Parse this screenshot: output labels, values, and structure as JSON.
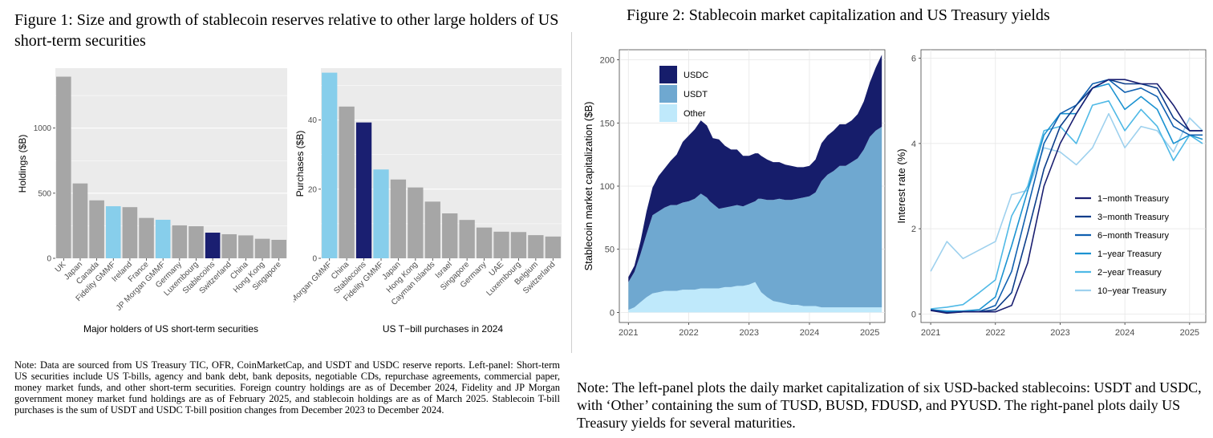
{
  "figure1": {
    "title": "Figure 1: Size and growth of stablecoin reserves relative to other large holders of US short-term securities",
    "note": "Note: Data are sourced from US Treasury TIC, OFR, CoinMarketCap, and USDT and USDC reserve reports. Left-panel: Short-term US securities include US T-bills, agency and bank debt, bank deposits, negotiable CDs, repurchase agreements, commercial paper, money market funds, and other short-term securities. Foreign country holdings are as of December 2024, Fidelity and JP Morgan government money market fund holdings are as of February 2025, and stablecoin holdings are as of March 2025. Stablecoin T-bill purchases is the sum of USDT and USDC T-bill position changes from December 2023 to December 2024."
  },
  "figure2": {
    "title": "Figure 2: Stablecoin market capitalization and US Treasury yields",
    "note": "Note: The left-panel plots the daily market capitalization of six USD-backed stablecoins: USDT and USDC, with ‘Other’ containing the sum of TUSD, BUSD, FDUSD, and PYUSD. The right-panel plots daily US Treasury yields for several maturities."
  },
  "colors": {
    "gray": "#a6a6a6",
    "light_blue": "#87ceeb",
    "navy": "#1a1f71",
    "panel_bg": "#ebebeb",
    "usdc": "#161d6b",
    "usdt": "#6fa8d0",
    "other": "#bfe9fb"
  },
  "chart_data": [
    {
      "type": "bar",
      "xlabel": "Major holders of US short-term securities",
      "ylabel": "Holdings ($B)",
      "ylim": [
        0,
        1460
      ],
      "yticks": [
        0,
        500,
        1000
      ],
      "grid": true,
      "categories": [
        "UK",
        "Japan",
        "Canada",
        "Fidelity GMMF",
        "Ireland",
        "France",
        "JP Morgan GMMF",
        "Germany",
        "Luxembourg",
        "Stablecoins",
        "Switzerland",
        "China",
        "Hong Kong",
        "Singapore"
      ],
      "values": [
        1395,
        575,
        445,
        400,
        393,
        310,
        296,
        253,
        247,
        197,
        185,
        176,
        150,
        142
      ],
      "bar_colors": [
        "gray",
        "gray",
        "gray",
        "light_blue",
        "gray",
        "gray",
        "light_blue",
        "gray",
        "gray",
        "navy",
        "gray",
        "gray",
        "gray",
        "gray"
      ]
    },
    {
      "type": "bar",
      "xlabel": "US T−bill purchases in 2024",
      "ylabel": "Purchases ($B)",
      "ylim": [
        0,
        55
      ],
      "yticks": [
        0,
        20,
        40
      ],
      "grid": true,
      "categories": [
        "JP Morgan GMMF",
        "China",
        "Stablecoins",
        "Fidelity GMMF",
        "Japan",
        "Hong Kong",
        "Cayman Islands",
        "Israel",
        "Singapore",
        "Germany",
        "UAE",
        "Luxembourg",
        "Belgium",
        "Switzerland"
      ],
      "values": [
        53.7,
        43.9,
        39.3,
        25.7,
        22.8,
        20.5,
        16.4,
        13.0,
        11.1,
        8.9,
        7.7,
        7.6,
        6.7,
        6.3
      ],
      "bar_colors": [
        "light_blue",
        "gray",
        "navy",
        "light_blue",
        "gray",
        "gray",
        "gray",
        "gray",
        "gray",
        "gray",
        "gray",
        "gray",
        "gray",
        "gray"
      ]
    },
    {
      "type": "area",
      "ylabel": "Stablecoin market capitalization ($B)",
      "xlim": [
        2020.85,
        2025.25
      ],
      "ylim": [
        -8,
        208
      ],
      "xticks": [
        "2021",
        "2022",
        "2023",
        "2024",
        "2025"
      ],
      "yticks": [
        0,
        50,
        100,
        150,
        200
      ],
      "grid": true,
      "legend_position": "top-left",
      "x": [
        2021.0,
        2021.1,
        2021.2,
        2021.3,
        2021.4,
        2021.5,
        2021.6,
        2021.7,
        2021.8,
        2021.9,
        2022.0,
        2022.1,
        2022.2,
        2022.3,
        2022.35,
        2022.4,
        2022.5,
        2022.6,
        2022.7,
        2022.8,
        2022.9,
        2023.0,
        2023.1,
        2023.15,
        2023.2,
        2023.3,
        2023.4,
        2023.5,
        2023.6,
        2023.7,
        2023.8,
        2023.9,
        2024.0,
        2024.1,
        2024.2,
        2024.3,
        2024.4,
        2024.5,
        2024.6,
        2024.7,
        2024.8,
        2024.9,
        2025.0,
        2025.1,
        2025.2
      ],
      "series": [
        {
          "name": "Other",
          "stack": "bottom",
          "values": [
            2,
            4,
            8,
            12,
            15,
            16,
            17,
            17,
            17,
            18,
            18,
            18,
            19,
            19,
            19,
            19,
            19,
            20,
            20,
            21,
            21,
            22,
            24,
            20,
            16,
            12,
            9,
            8,
            7,
            6,
            6,
            5,
            5,
            5,
            4,
            4,
            4,
            4,
            4,
            4,
            4,
            4,
            4,
            4,
            4
          ]
        },
        {
          "name": "USDT",
          "stack": "middle",
          "values": [
            22,
            28,
            38,
            50,
            62,
            64,
            66,
            68,
            68,
            69,
            70,
            72,
            75,
            72,
            69,
            67,
            63,
            63,
            64,
            64,
            63,
            64,
            64,
            70,
            74,
            77,
            80,
            82,
            82,
            83,
            84,
            86,
            87,
            90,
            100,
            105,
            108,
            112,
            112,
            115,
            118,
            125,
            135,
            140,
            143
          ]
        },
        {
          "name": "USDC",
          "stack": "top",
          "values": [
            4,
            5,
            10,
            18,
            22,
            28,
            31,
            35,
            40,
            48,
            52,
            55,
            58,
            57,
            55,
            52,
            55,
            49,
            45,
            44,
            40,
            38,
            38,
            36,
            34,
            32,
            30,
            29,
            28,
            27,
            25,
            24,
            24,
            26,
            30,
            31,
            32,
            33,
            33,
            33,
            35,
            38,
            43,
            50,
            57
          ]
        }
      ]
    },
    {
      "type": "line",
      "ylabel": "Interest rate (%)",
      "xlim": [
        2020.85,
        2025.25
      ],
      "ylim": [
        -0.2,
        6.2
      ],
      "xticks": [
        "2021",
        "2022",
        "2023",
        "2024",
        "2025"
      ],
      "yticks": [
        0,
        2,
        4,
        6
      ],
      "grid": true,
      "legend_position": "bottom-right",
      "x": [
        2021.0,
        2021.25,
        2021.5,
        2021.75,
        2022.0,
        2022.25,
        2022.5,
        2022.75,
        2023.0,
        2023.25,
        2023.5,
        2023.75,
        2024.0,
        2024.25,
        2024.5,
        2024.75,
        2025.0,
        2025.2
      ],
      "series": [
        {
          "name": "1−month Treasury",
          "color": "#1a1f71",
          "values": [
            0.08,
            0.02,
            0.05,
            0.05,
            0.05,
            0.2,
            1.2,
            3.0,
            4.0,
            4.7,
            5.3,
            5.5,
            5.5,
            5.4,
            5.4,
            4.9,
            4.3,
            4.3
          ]
        },
        {
          "name": "3−month Treasury",
          "color": "#0c3d8a",
          "values": [
            0.09,
            0.03,
            0.05,
            0.05,
            0.1,
            0.5,
            1.9,
            3.4,
            4.4,
            4.9,
            5.3,
            5.5,
            5.4,
            5.4,
            5.3,
            4.6,
            4.3,
            4.3
          ]
        },
        {
          "name": "6−month Treasury",
          "color": "#1060b0",
          "values": [
            0.1,
            0.04,
            0.05,
            0.06,
            0.2,
            1.0,
            2.5,
            4.0,
            4.7,
            4.9,
            5.4,
            5.5,
            5.2,
            5.3,
            5.1,
            4.4,
            4.2,
            4.2
          ]
        },
        {
          "name": "1−year Treasury",
          "color": "#1c93d1",
          "values": [
            0.1,
            0.07,
            0.07,
            0.1,
            0.4,
            1.6,
            2.9,
            4.2,
            4.7,
            4.7,
            5.3,
            5.4,
            4.8,
            5.1,
            4.8,
            4.0,
            4.2,
            4.1
          ]
        },
        {
          "name": "2−year Treasury",
          "color": "#4fb9e6",
          "values": [
            0.12,
            0.16,
            0.22,
            0.5,
            0.8,
            2.3,
            3.0,
            4.3,
            4.4,
            4.0,
            4.9,
            5.0,
            4.3,
            4.8,
            4.4,
            3.6,
            4.2,
            4.0
          ]
        },
        {
          "name": "10−year Treasury",
          "color": "#9ed1ee",
          "values": [
            1.0,
            1.7,
            1.3,
            1.5,
            1.7,
            2.8,
            2.9,
            3.9,
            3.8,
            3.5,
            3.9,
            4.7,
            3.9,
            4.4,
            4.3,
            3.8,
            4.6,
            4.3
          ]
        }
      ]
    }
  ]
}
